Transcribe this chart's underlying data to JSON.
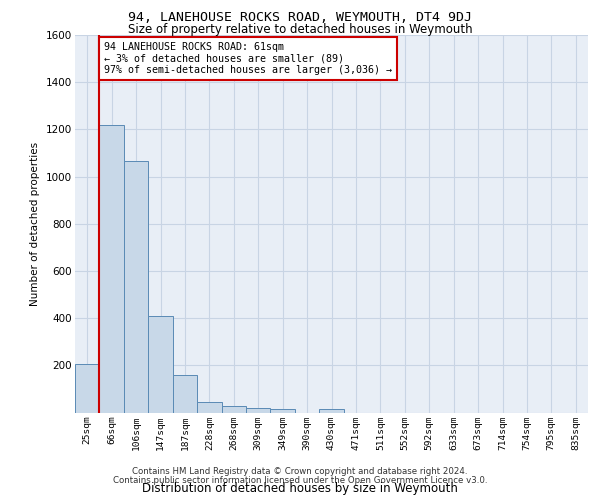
{
  "title": "94, LANEHOUSE ROCKS ROAD, WEYMOUTH, DT4 9DJ",
  "subtitle": "Size of property relative to detached houses in Weymouth",
  "xlabel": "Distribution of detached houses by size in Weymouth",
  "ylabel": "Number of detached properties",
  "categories": [
    "25sqm",
    "66sqm",
    "106sqm",
    "147sqm",
    "187sqm",
    "228sqm",
    "268sqm",
    "309sqm",
    "349sqm",
    "390sqm",
    "430sqm",
    "471sqm",
    "511sqm",
    "552sqm",
    "592sqm",
    "633sqm",
    "673sqm",
    "714sqm",
    "754sqm",
    "795sqm",
    "835sqm"
  ],
  "values": [
    205,
    1220,
    1065,
    410,
    160,
    45,
    27,
    17,
    15,
    0,
    13,
    0,
    0,
    0,
    0,
    0,
    0,
    0,
    0,
    0,
    0
  ],
  "bar_color": "#c8d8e8",
  "bar_edge_color": "#5a8ab5",
  "ylim": [
    0,
    1600
  ],
  "yticks": [
    0,
    200,
    400,
    600,
    800,
    1000,
    1200,
    1400,
    1600
  ],
  "property_line_x": 0.5,
  "annotation_text": "94 LANEHOUSE ROCKS ROAD: 61sqm\n← 3% of detached houses are smaller (89)\n97% of semi-detached houses are larger (3,036) →",
  "annotation_box_color": "#cc0000",
  "footer_line1": "Contains HM Land Registry data © Crown copyright and database right 2024.",
  "footer_line2": "Contains public sector information licensed under the Open Government Licence v3.0.",
  "grid_color": "#c8d4e4",
  "bg_color": "#e8eef6",
  "title_fontsize": 9.5,
  "subtitle_fontsize": 8.5
}
